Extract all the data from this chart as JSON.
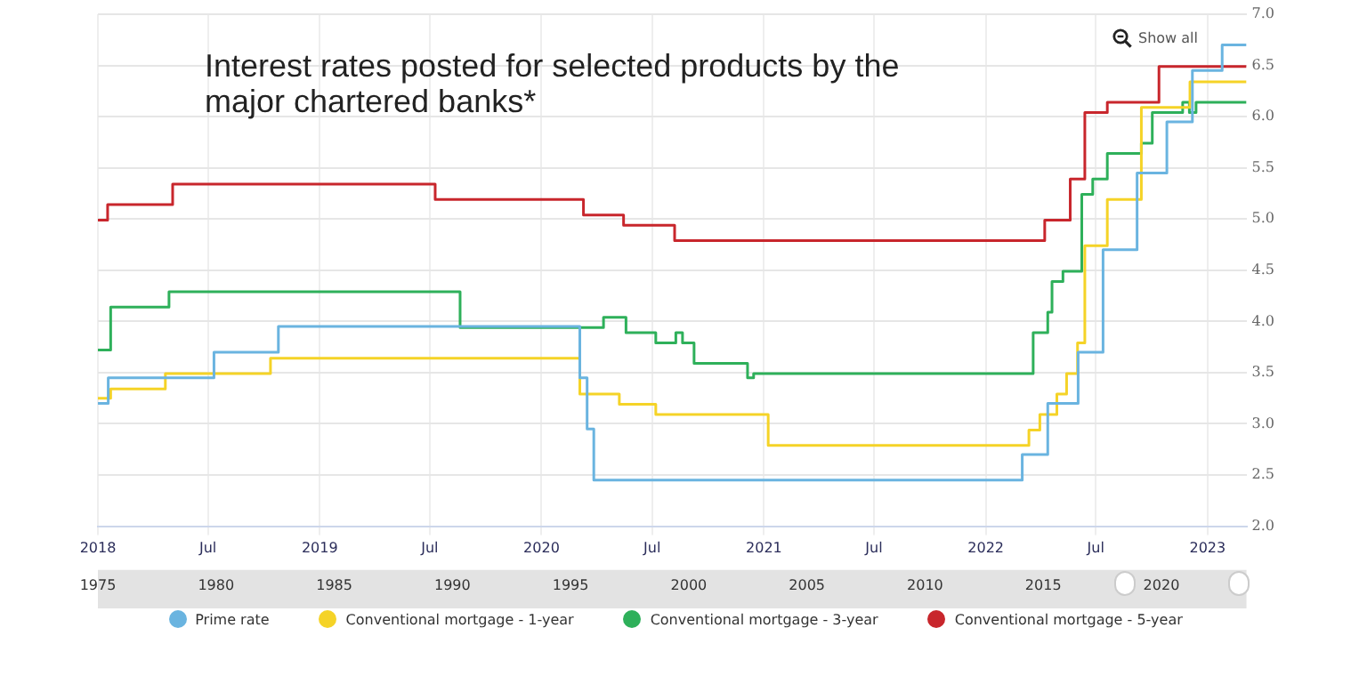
{
  "chart_data": [
    {
      "type": "step",
      "title": "Interest rates posted for selected products by the major chartered banks*",
      "annotations": [
        "Show all"
      ],
      "xlim": [
        "2018-01-01",
        "2023-03-06"
      ],
      "xticks": [
        {
          "value": "2018-01-01",
          "label": "2018"
        },
        {
          "value": "2018-07-01",
          "label": "Jul"
        },
        {
          "value": "2019-01-01",
          "label": "2019"
        },
        {
          "value": "2019-07-01",
          "label": "Jul"
        },
        {
          "value": "2020-01-01",
          "label": "2020"
        },
        {
          "value": "2020-07-01",
          "label": "Jul"
        },
        {
          "value": "2021-01-01",
          "label": "2021"
        },
        {
          "value": "2021-07-01",
          "label": "Jul"
        },
        {
          "value": "2022-01-01",
          "label": "2022"
        },
        {
          "value": "2022-07-01",
          "label": "Jul"
        },
        {
          "value": "2023-01-01",
          "label": "2023"
        }
      ],
      "ylim": [
        2,
        7
      ],
      "yticks": [
        {
          "value": 2,
          "label": "2.0"
        },
        {
          "value": 2.5,
          "label": "2.5"
        },
        {
          "value": 3,
          "label": "3.0"
        },
        {
          "value": 3.5,
          "label": "3.5"
        },
        {
          "value": 4,
          "label": "4.0"
        },
        {
          "value": 4.5,
          "label": "4.5"
        },
        {
          "value": 5,
          "label": "5.0"
        },
        {
          "value": 5.5,
          "label": "5.5"
        },
        {
          "value": 6,
          "label": "6.0"
        },
        {
          "value": 6.5,
          "label": "6.5"
        },
        {
          "value": 7,
          "label": "7.0"
        }
      ],
      "grid": true,
      "legend": "bottom",
      "marker": "none",
      "line_style": "solid",
      "series": [
        {
          "name": "Prime rate",
          "color": "#6ab4e0",
          "x": [
            "2018-01-01",
            "2018-01-18",
            "2018-07-11",
            "2018-10-25",
            "2020-03-04",
            "2020-03-16",
            "2020-03-27",
            "2022-03-02",
            "2022-04-13",
            "2022-06-02",
            "2022-07-13",
            "2022-09-07",
            "2022-10-26",
            "2022-12-07",
            "2023-01-25",
            "2023-03-06"
          ],
          "values": [
            3.2,
            3.45,
            3.7,
            3.95,
            3.45,
            2.95,
            2.45,
            2.7,
            3.2,
            3.7,
            4.7,
            5.45,
            5.95,
            6.45,
            6.7,
            6.7
          ]
        },
        {
          "name": "Conventional mortgage - 1-year",
          "color": "#f5d327",
          "x": [
            "2018-01-01",
            "2018-01-22",
            "2018-04-22",
            "2018-10-12",
            "2020-03-04",
            "2020-05-08",
            "2020-07-07",
            "2021-01-08",
            "2022-03-13",
            "2022-03-31",
            "2022-04-28",
            "2022-05-14",
            "2022-06-01",
            "2022-06-13",
            "2022-07-20",
            "2022-09-14",
            "2022-12-03",
            "2023-03-06"
          ],
          "values": [
            3.25,
            3.34,
            3.49,
            3.64,
            3.29,
            3.19,
            3.09,
            2.79,
            2.94,
            3.09,
            3.29,
            3.49,
            3.79,
            4.74,
            5.19,
            6.09,
            6.34,
            6.34
          ]
        },
        {
          "name": "Conventional mortgage - 3-year",
          "color": "#2eb05a",
          "x": [
            "2018-01-01",
            "2018-01-22",
            "2018-04-28",
            "2019-08-20",
            "2020-04-12",
            "2020-05-19",
            "2020-07-07",
            "2020-08-09",
            "2020-08-20",
            "2020-09-08",
            "2020-12-05",
            "2020-12-15",
            "2022-03-20",
            "2022-04-13",
            "2022-04-20",
            "2022-05-08",
            "2022-06-08",
            "2022-06-26",
            "2022-07-20",
            "2022-09-14",
            "2022-10-02",
            "2022-11-21",
            "2022-12-02",
            "2022-12-13",
            "2023-03-06"
          ],
          "values": [
            3.72,
            4.14,
            4.29,
            3.94,
            4.04,
            3.89,
            3.79,
            3.89,
            3.79,
            3.59,
            3.45,
            3.49,
            3.89,
            4.09,
            4.39,
            4.49,
            5.24,
            5.39,
            5.64,
            5.74,
            6.04,
            6.14,
            6.04,
            6.14,
            6.14
          ]
        },
        {
          "name": "Conventional mortgage - 5-year",
          "color": "#c8262c",
          "x": [
            "2018-01-01",
            "2018-01-17",
            "2018-05-04",
            "2019-07-10",
            "2020-03-10",
            "2020-05-15",
            "2020-08-07",
            "2022-04-08",
            "2022-05-20",
            "2022-06-13",
            "2022-07-20",
            "2022-10-13",
            "2023-03-06"
          ],
          "values": [
            4.99,
            5.14,
            5.34,
            5.19,
            5.04,
            4.94,
            4.79,
            4.99,
            5.39,
            6.04,
            6.14,
            6.49,
            6.49
          ]
        }
      ],
      "x2lim": [
        1975,
        2023.6
      ],
      "x2ticks": [
        1975,
        1980,
        1985,
        1990,
        1995,
        2000,
        2005,
        2010,
        2015,
        2020
      ]
    }
  ]
}
